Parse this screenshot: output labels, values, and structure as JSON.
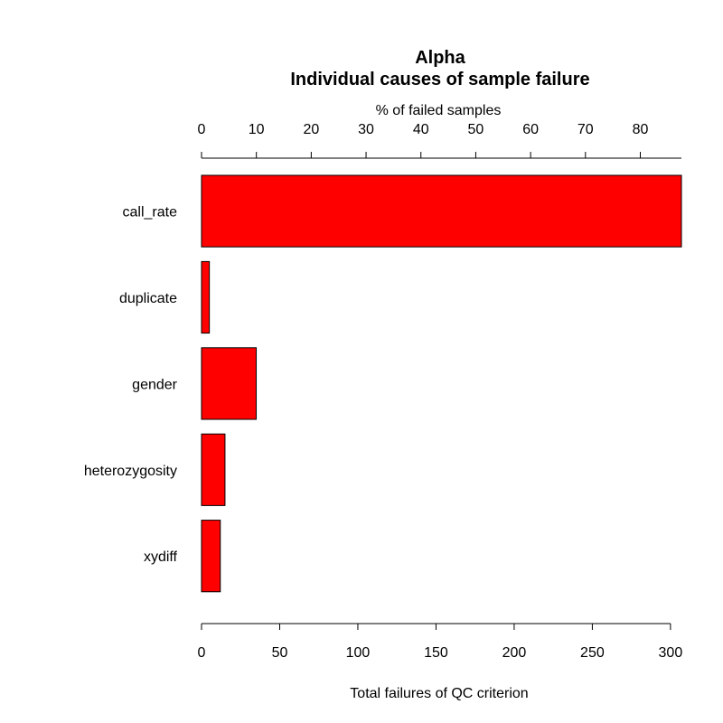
{
  "chart_data": {
    "type": "bar",
    "orientation": "horizontal",
    "title": "Alpha",
    "subtitle": "Individual causes of sample failure",
    "xlabel": "Total failures of QC criterion",
    "top_axis_label": "% of failed samples",
    "categories": [
      "call_rate",
      "duplicate",
      "gender",
      "heterozygosity",
      "xydiff"
    ],
    "values": [
      307,
      5,
      35,
      15,
      12
    ],
    "xlim": [
      0,
      307
    ],
    "x_ticks": [
      "0",
      "50",
      "100",
      "150",
      "200",
      "250",
      "300"
    ],
    "top_ticks": [
      "0",
      "10",
      "20",
      "30",
      "40",
      "50",
      "60",
      "70",
      "80"
    ],
    "top_xlim": [
      0,
      87.5
    ],
    "bar_color": "#ff0000",
    "grid": false,
    "legend": "none"
  }
}
